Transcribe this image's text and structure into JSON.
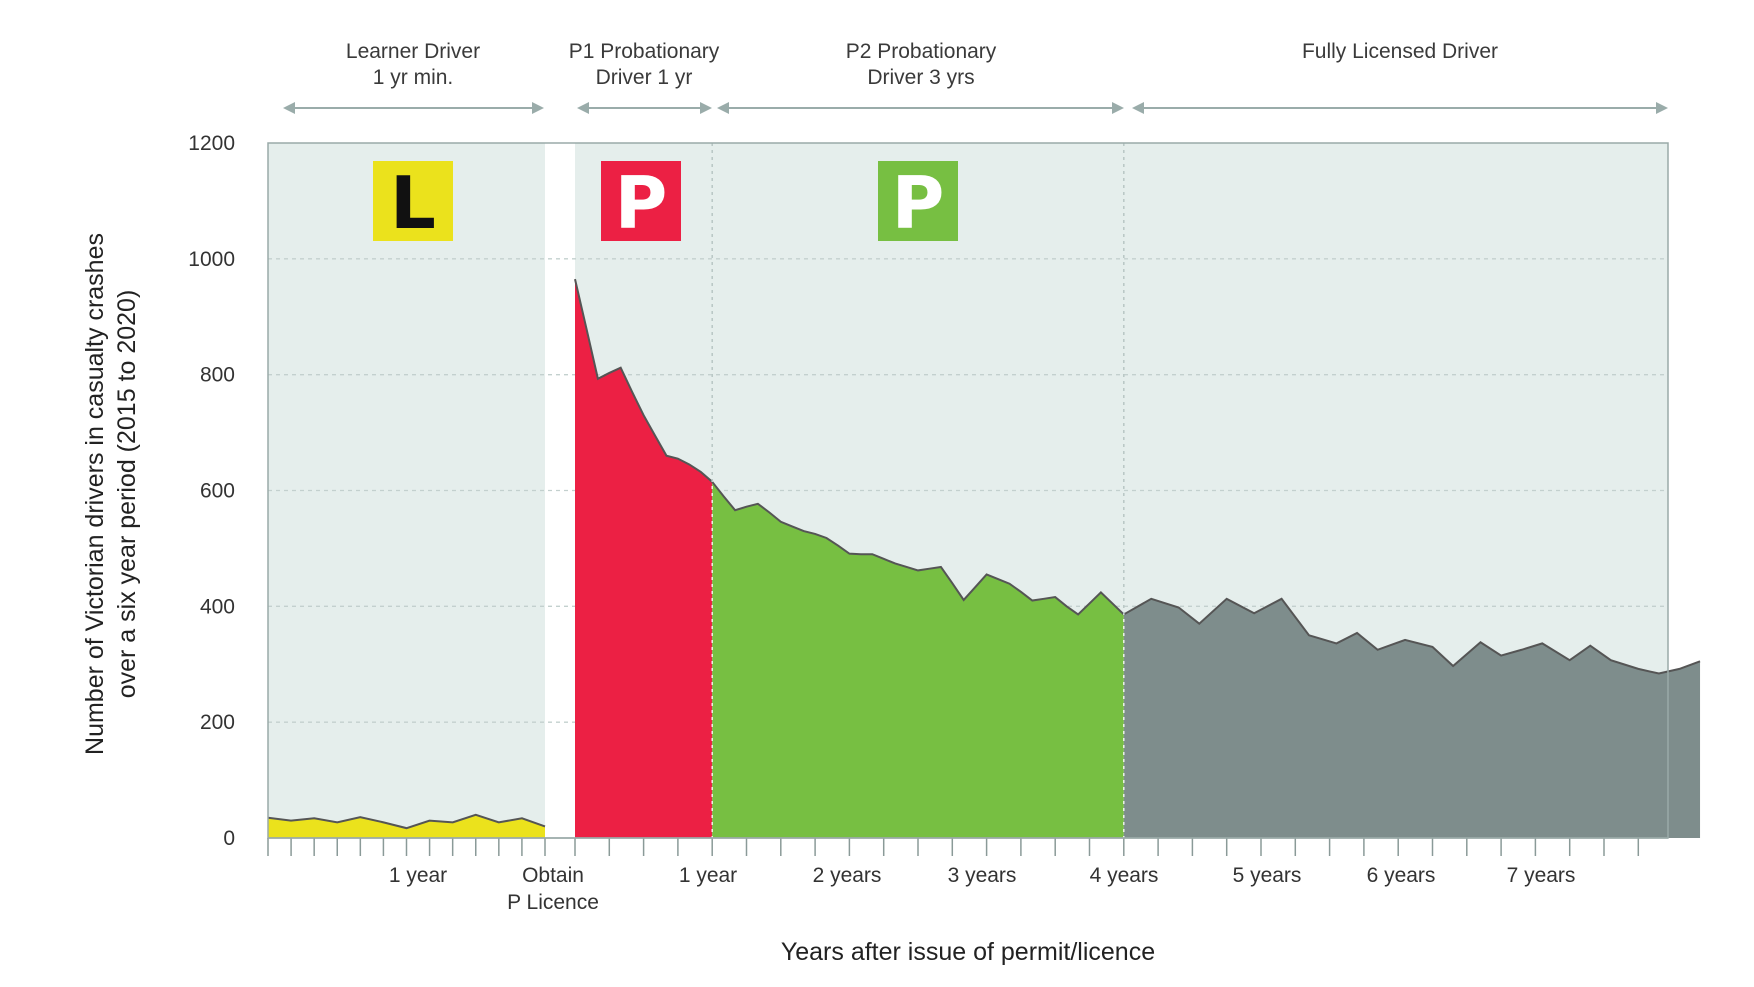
{
  "chart_data": {
    "type": "area",
    "xlabel": "Years after issue of permit/licence",
    "ylabel_lines": [
      "Number of Victorian drivers in casualty crashes",
      "over a six year period (2015 to 2020)"
    ],
    "ylim": [
      0,
      1200
    ],
    "y_ticks": [
      "0",
      "200",
      "400",
      "600",
      "800",
      "1000",
      "1200"
    ],
    "grid": "horizontal dashed",
    "phases": [
      {
        "label_lines": [
          "Learner Driver",
          "1 yr min."
        ]
      },
      {
        "label_lines": [
          "P1 Probationary",
          "Driver 1 yr"
        ]
      },
      {
        "label_lines": [
          "P2 Probationary",
          "Driver 3 yrs"
        ]
      },
      {
        "label_lines": [
          "Fully Licensed Driver"
        ]
      }
    ],
    "badges": [
      {
        "letter": "L",
        "color": "#ebe21c",
        "text_color": "#111111"
      },
      {
        "letter": "P",
        "color": "#ec2044",
        "text_color": "#ffffff"
      },
      {
        "letter": "P",
        "color": "#77bf42",
        "text_color": "#ffffff"
      }
    ],
    "x_tick_labels": [
      {
        "lines": [
          "1 year"
        ]
      },
      {
        "lines": [
          "Obtain",
          "P Licence"
        ]
      },
      {
        "lines": [
          "1 year"
        ]
      },
      {
        "lines": [
          "2 years"
        ]
      },
      {
        "lines": [
          "3 years"
        ]
      },
      {
        "lines": [
          "4 years"
        ]
      },
      {
        "lines": [
          "5 years"
        ]
      },
      {
        "lines": [
          "6 years"
        ]
      },
      {
        "lines": [
          "7 years"
        ]
      }
    ],
    "colors": {
      "learner": "#ebe21c",
      "p1": "#ec2044",
      "p2": "#77bf42",
      "full": "#7e8d8c",
      "background": "#e5eeec",
      "outline": "#555555",
      "arrow": "#9aacaa"
    },
    "series": [
      {
        "phase": "Learner",
        "x": [
          0.0,
          0.083,
          0.167,
          0.25,
          0.333,
          0.417,
          0.5,
          0.583,
          0.667,
          0.75,
          0.833,
          0.917,
          1.0
        ],
        "values": [
          35,
          30,
          34,
          27,
          36,
          27,
          17,
          30,
          27,
          40,
          27,
          34,
          20
        ]
      },
      {
        "phase": "P1",
        "x": [
          0.0,
          0.083,
          0.167,
          0.25,
          0.333,
          0.417,
          0.5,
          0.583,
          0.667,
          0.75,
          0.833,
          0.917,
          1.0
        ],
        "values": [
          965,
          880,
          793,
          803,
          812,
          770,
          730,
          695,
          660,
          655,
          645,
          632,
          615
        ]
      },
      {
        "phase": "P2",
        "x": [
          1.0,
          1.083,
          1.167,
          1.25,
          1.333,
          1.417,
          1.5,
          1.583,
          1.667,
          1.75,
          1.833,
          1.917,
          2.0,
          2.083,
          2.167,
          2.25,
          2.333,
          2.417,
          2.5,
          2.583,
          2.667,
          2.75,
          2.833,
          2.917,
          3.0,
          3.083,
          3.167,
          3.25,
          3.333,
          3.417,
          3.5,
          3.583,
          3.667,
          3.75,
          3.833,
          3.917,
          4.0
        ],
        "values": [
          615,
          590,
          566,
          572,
          577,
          562,
          546,
          538,
          530,
          525,
          518,
          505,
          491,
          490,
          490,
          482,
          474,
          468,
          462,
          465,
          468,
          440,
          411,
          433,
          455,
          447,
          439,
          425,
          410,
          413,
          416,
          400,
          386,
          405,
          424,
          405,
          386
        ]
      },
      {
        "phase": "Full",
        "x": [
          4.0,
          4.2,
          4.4,
          4.55,
          4.75,
          4.95,
          5.15,
          5.35,
          5.55,
          5.7,
          5.85,
          6.05,
          6.25,
          6.4,
          6.6,
          6.75,
          6.9,
          7.05,
          7.25,
          7.4,
          7.55,
          7.75,
          7.9,
          8.05,
          8.2
        ],
        "values": [
          386,
          413,
          398,
          370,
          413,
          388,
          413,
          350,
          336,
          354,
          325,
          342,
          330,
          297,
          338,
          315,
          325,
          336,
          307,
          332,
          307,
          292,
          284,
          292,
          305
        ]
      }
    ]
  }
}
